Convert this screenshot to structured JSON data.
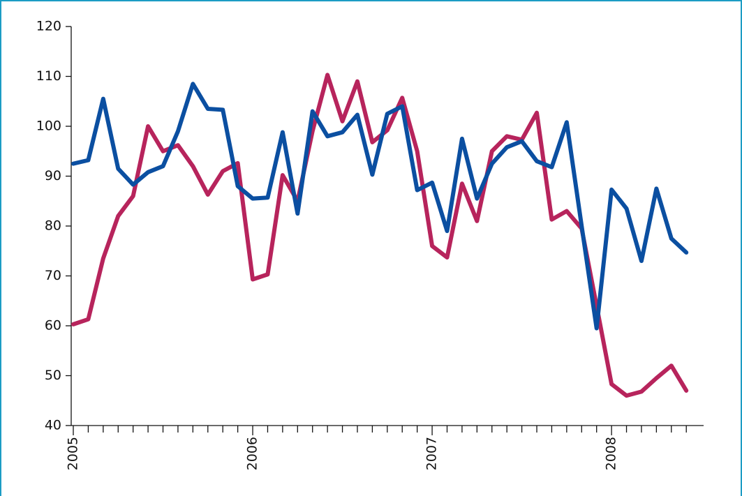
{
  "chart_data": {
    "type": "line",
    "categories": [
      "2005",
      null,
      null,
      null,
      null,
      null,
      null,
      null,
      null,
      null,
      null,
      null,
      "2006",
      null,
      null,
      null,
      null,
      null,
      null,
      null,
      null,
      null,
      null,
      null,
      "2007",
      null,
      null,
      null,
      null,
      null,
      null,
      null,
      null,
      null,
      null,
      null,
      "2008",
      null,
      null,
      null,
      null,
      null
    ],
    "series": [
      {
        "color": "#b7245c",
        "values": [
          60.3,
          61.3,
          73.5,
          82,
          86,
          100,
          95,
          96.2,
          92,
          86.3,
          91,
          92.6,
          69.3,
          70.3,
          90.2,
          85,
          99,
          110.3,
          101,
          109,
          96.8,
          99.2,
          105.7,
          95,
          76,
          73.7,
          88.5,
          81,
          95,
          98,
          97.3,
          102.7,
          81.3,
          83,
          79.5,
          64,
          48.3,
          46,
          46.8,
          49.5,
          52,
          47
        ]
      },
      {
        "color": "#0b4fa1",
        "values": [
          92.5,
          93.2,
          105.5,
          91.5,
          88.3,
          90.8,
          92,
          99,
          108.5,
          103.5,
          103.3,
          88,
          85.5,
          85.7,
          98.8,
          82.5,
          103,
          98,
          98.8,
          102.3,
          90.3,
          102.5,
          104,
          87.2,
          88.7,
          79,
          97.5,
          85.5,
          92.5,
          95.8,
          97,
          93,
          91.8,
          100.8,
          80,
          59.5,
          87.3,
          83.5,
          73,
          87.5,
          77.5,
          74.7
        ]
      }
    ],
    "ylim": [
      40,
      120
    ],
    "yticks": [
      40,
      50,
      60,
      70,
      80,
      90,
      100,
      110,
      120
    ]
  }
}
